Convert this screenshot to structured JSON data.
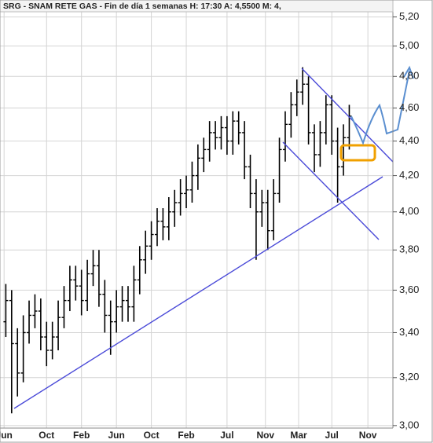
{
  "chart_data": {
    "type": "ohlc",
    "title": "SRG - SNAM RETE GAS - Fin de día 1 semanas  H: 17:30  A: 4,5500  M: 4,",
    "log_scale": true,
    "grid": true,
    "color": "#000000",
    "ylim": [
      2.99,
      5.32
    ],
    "yticks": [
      {
        "value": 3.0,
        "label": "3,00"
      },
      {
        "value": 3.2,
        "label": "3,20"
      },
      {
        "value": 3.4,
        "label": "3,40"
      },
      {
        "value": 3.6,
        "label": "3,60"
      },
      {
        "value": 3.8,
        "label": "3,80"
      },
      {
        "value": 4.0,
        "label": "4,00"
      },
      {
        "value": 4.2,
        "label": "4,20"
      },
      {
        "value": 4.4,
        "label": "4,40"
      },
      {
        "value": 4.6,
        "label": "4,60"
      },
      {
        "value": 4.8,
        "label": "4,80"
      },
      {
        "value": 5.0,
        "label": "5,00"
      },
      {
        "value": 5.2,
        "label": "5,20"
      }
    ],
    "xlim": [
      -1,
      66.5
    ],
    "xticks": [
      {
        "value": -0.3,
        "label": "Jun"
      },
      {
        "value": 7,
        "label": "Oct"
      },
      {
        "value": 13,
        "label": "Feb"
      },
      {
        "value": 19,
        "label": "Jun"
      },
      {
        "value": 25,
        "label": "Oct"
      },
      {
        "value": 31,
        "label": "Feb"
      },
      {
        "value": 38,
        "label": "Jul"
      },
      {
        "value": 44.6,
        "label": "Nov"
      },
      {
        "value": 50.3,
        "label": "Mar"
      },
      {
        "value": 56,
        "label": "Jul"
      },
      {
        "value": 62.2,
        "label": "Nov"
      }
    ],
    "open": [
      3.45,
      3.55,
      3.35,
      3.22,
      3.4,
      3.48,
      3.5,
      3.38,
      3.32,
      3.38,
      3.47,
      3.55,
      3.65,
      3.62,
      3.55,
      3.68,
      3.72,
      3.58,
      3.48,
      3.45,
      3.52,
      3.55,
      3.52,
      3.65,
      3.75,
      3.82,
      3.88,
      3.95,
      3.92,
      4.0,
      4.05,
      4.1,
      4.12,
      4.2,
      4.3,
      4.35,
      4.45,
      4.42,
      4.48,
      4.4,
      4.52,
      4.45,
      4.25,
      4.1,
      4.0,
      4.05,
      3.9,
      4.1,
      4.35,
      4.5,
      4.62,
      4.7,
      4.75,
      4.45,
      4.32,
      4.45,
      4.62,
      4.4,
      4.25,
      4.42
    ],
    "high": [
      3.63,
      3.6,
      3.42,
      3.48,
      3.55,
      3.58,
      3.56,
      3.45,
      3.45,
      3.55,
      3.62,
      3.72,
      3.72,
      3.7,
      3.75,
      3.8,
      3.8,
      3.65,
      3.55,
      3.6,
      3.62,
      3.62,
      3.72,
      3.82,
      3.9,
      3.95,
      4.02,
      4.02,
      4.08,
      4.12,
      4.18,
      4.2,
      4.28,
      4.38,
      4.42,
      4.52,
      4.52,
      4.55,
      4.55,
      4.58,
      4.58,
      4.52,
      4.32,
      4.18,
      4.12,
      4.12,
      4.18,
      4.42,
      4.58,
      4.7,
      4.78,
      4.86,
      4.8,
      4.5,
      4.52,
      4.68,
      4.68,
      4.48,
      4.5,
      4.62
    ],
    "low": [
      3.38,
      3.05,
      3.12,
      3.18,
      3.35,
      3.42,
      3.32,
      3.25,
      3.28,
      3.32,
      3.42,
      3.5,
      3.55,
      3.48,
      3.5,
      3.62,
      3.52,
      3.4,
      3.3,
      3.4,
      3.45,
      3.45,
      3.45,
      3.58,
      3.68,
      3.75,
      3.82,
      3.85,
      3.85,
      3.92,
      3.98,
      4.02,
      4.05,
      4.12,
      4.22,
      4.28,
      4.35,
      4.35,
      4.32,
      4.32,
      4.38,
      4.18,
      4.02,
      3.75,
      3.92,
      3.8,
      3.85,
      4.05,
      4.28,
      4.42,
      4.55,
      4.62,
      4.38,
      4.22,
      4.25,
      4.38,
      4.32,
      4.05,
      4.2,
      4.35
    ],
    "close": [
      3.55,
      3.35,
      3.22,
      3.4,
      3.48,
      3.5,
      3.38,
      3.32,
      3.38,
      3.47,
      3.55,
      3.65,
      3.62,
      3.55,
      3.68,
      3.72,
      3.58,
      3.48,
      3.45,
      3.52,
      3.55,
      3.52,
      3.65,
      3.75,
      3.82,
      3.88,
      3.95,
      3.92,
      4.0,
      4.05,
      4.1,
      4.12,
      4.2,
      4.3,
      4.35,
      4.45,
      4.42,
      4.48,
      4.4,
      4.52,
      4.45,
      4.25,
      4.1,
      4.0,
      4.05,
      3.9,
      4.1,
      4.35,
      4.5,
      4.62,
      4.7,
      4.75,
      4.45,
      4.32,
      4.45,
      4.62,
      4.4,
      4.25,
      4.42,
      4.55
    ]
  }
}
